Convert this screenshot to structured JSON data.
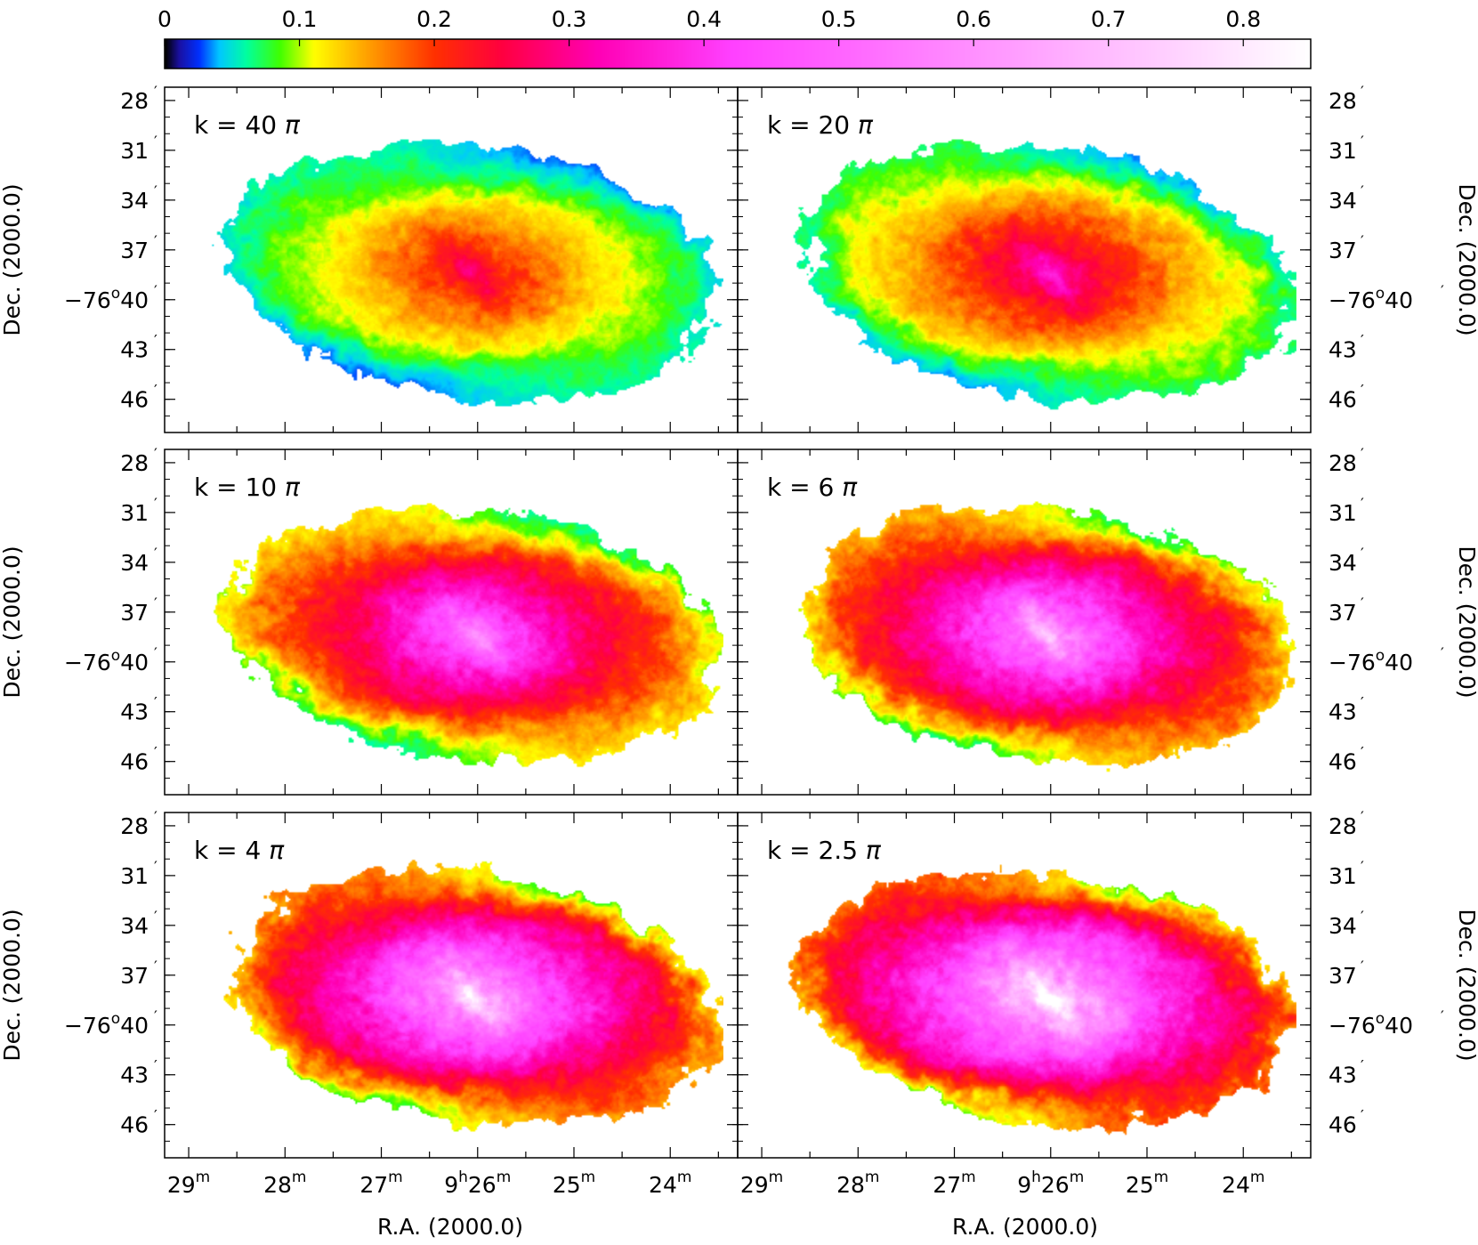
{
  "chart_data": {
    "type": "heatmap",
    "colorbar": {
      "min": 0,
      "max": 0.85,
      "tick_labels": [
        "0",
        "0.1",
        "0.2",
        "0.3",
        "0.4",
        "0.5",
        "0.6",
        "0.7",
        "0.8"
      ],
      "tick_values": [
        0,
        0.1,
        0.2,
        0.3,
        0.4,
        0.5,
        0.6,
        0.7,
        0.8
      ],
      "colormap": [
        {
          "v": 0.0,
          "c": "#000000"
        },
        {
          "v": 0.01,
          "c": "#1a10a0"
        },
        {
          "v": 0.025,
          "c": "#0030ff"
        },
        {
          "v": 0.04,
          "c": "#00c8ff"
        },
        {
          "v": 0.06,
          "c": "#00ffa0"
        },
        {
          "v": 0.085,
          "c": "#40ff00"
        },
        {
          "v": 0.11,
          "c": "#ffff00"
        },
        {
          "v": 0.15,
          "c": "#ffa000"
        },
        {
          "v": 0.2,
          "c": "#ff3000"
        },
        {
          "v": 0.25,
          "c": "#ff0040"
        },
        {
          "v": 0.32,
          "c": "#ff00b4"
        },
        {
          "v": 0.42,
          "c": "#ff40ff"
        },
        {
          "v": 0.6,
          "c": "#ff90ff"
        },
        {
          "v": 0.85,
          "c": "#ffffff"
        }
      ]
    },
    "panels": [
      {
        "label": "k = 40",
        "pi": "π",
        "peak": 0.24
      },
      {
        "label": "k = 20",
        "pi": "π",
        "peak": 0.3
      },
      {
        "label": "k = 10",
        "pi": "π",
        "peak": 0.5
      },
      {
        "label": "k = 6",
        "pi": "π",
        "peak": 0.58
      },
      {
        "label": "k = 4",
        "pi": "π",
        "peak": 0.66
      },
      {
        "label": "k = 2.5",
        "pi": "π",
        "peak": 0.74
      }
    ],
    "dec_ticks": [
      {
        "deg": "",
        "min": "28"
      },
      {
        "deg": "",
        "min": "31"
      },
      {
        "deg": "",
        "min": "34"
      },
      {
        "deg": "",
        "min": "37"
      },
      {
        "deg": "−76",
        "min": "40"
      },
      {
        "deg": "",
        "min": "43"
      },
      {
        "deg": "",
        "min": "46"
      }
    ],
    "dec_values": [
      28,
      31,
      34,
      37,
      40,
      43,
      46
    ],
    "dec_range": [
      27.2,
      48
    ],
    "ra_ticks": [
      {
        "h": "",
        "m": "29"
      },
      {
        "h": "",
        "m": "28"
      },
      {
        "h": "",
        "m": "27"
      },
      {
        "h": "9",
        "m": "26"
      },
      {
        "h": "",
        "m": "25"
      },
      {
        "h": "",
        "m": "24"
      }
    ],
    "ra_values": [
      29,
      28,
      27,
      26,
      25,
      24
    ],
    "ra_range": [
      29.25,
      23.3
    ],
    "xlabel": "R.A. (2000.0)",
    "ylabel": "Dec. (2000.0)"
  }
}
